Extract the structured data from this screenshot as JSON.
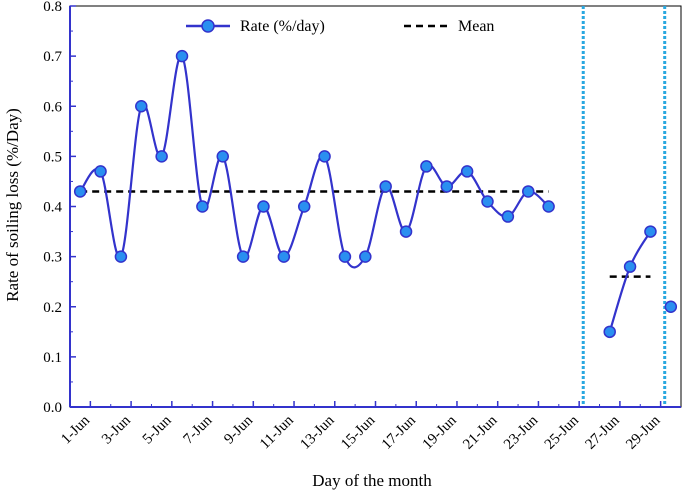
{
  "chart_data": {
    "type": "line",
    "title": "",
    "xlabel": "Day of the month",
    "ylabel": "Rate of soiling loss (%/Day)",
    "ylim": [
      0,
      0.8
    ],
    "yticks": [
      "0.0",
      "0.1",
      "0.2",
      "0.3",
      "0.4",
      "0.5",
      "0.6",
      "0.7",
      "0.8"
    ],
    "ytick_values": [
      0,
      0.1,
      0.2,
      0.3,
      0.4,
      0.5,
      0.6,
      0.7,
      0.8
    ],
    "xlim": [
      0.5,
      30.5
    ],
    "xticks": [
      "1-Jun",
      "3-Jun",
      "5-Jun",
      "7-Jun",
      "9-Jun",
      "11-Jun",
      "13-Jun",
      "15-Jun",
      "17-Jun",
      "19-Jun",
      "21-Jun",
      "23-Jun",
      "25-Jun",
      "27-Jun",
      "29-Jun"
    ],
    "xtick_positions": [
      1.5,
      3.5,
      5.5,
      7.5,
      9.5,
      11.5,
      13.5,
      15.5,
      17.5,
      19.5,
      21.5,
      23.5,
      25.5,
      27.5,
      29.5
    ],
    "series": [
      {
        "name": "Rate (%/day)",
        "color": "#3333cc",
        "marker_color": "#2a8ff0",
        "segments": [
          {
            "x": [
              1,
              2,
              3,
              4,
              5,
              6,
              7,
              8,
              9,
              10,
              11,
              12,
              13,
              14,
              15,
              16,
              17,
              18,
              19,
              20,
              21,
              22,
              23,
              24
            ],
            "y": [
              0.43,
              0.47,
              0.3,
              0.6,
              0.5,
              0.7,
              0.4,
              0.5,
              0.3,
              0.4,
              0.3,
              0.4,
              0.5,
              0.3,
              0.3,
              0.44,
              0.35,
              0.48,
              0.44,
              0.47,
              0.41,
              0.38,
              0.43,
              0.4
            ]
          },
          {
            "x": [
              27,
              28,
              29
            ],
            "y": [
              0.15,
              0.28,
              0.35
            ]
          },
          {
            "x": [
              30
            ],
            "y": [
              0.2
            ]
          }
        ]
      },
      {
        "name": "Mean",
        "style": "dashed",
        "color": "#000000",
        "segments": [
          {
            "x": [
              1,
              24
            ],
            "y": [
              0.43,
              0.43
            ]
          },
          {
            "x": [
              27,
              29
            ],
            "y": [
              0.26,
              0.26
            ]
          }
        ]
      }
    ],
    "vertical_lines": {
      "x": [
        25.7,
        29.7
      ],
      "color": "#29a8e0",
      "style": "dotted"
    },
    "legend_position": "top"
  }
}
